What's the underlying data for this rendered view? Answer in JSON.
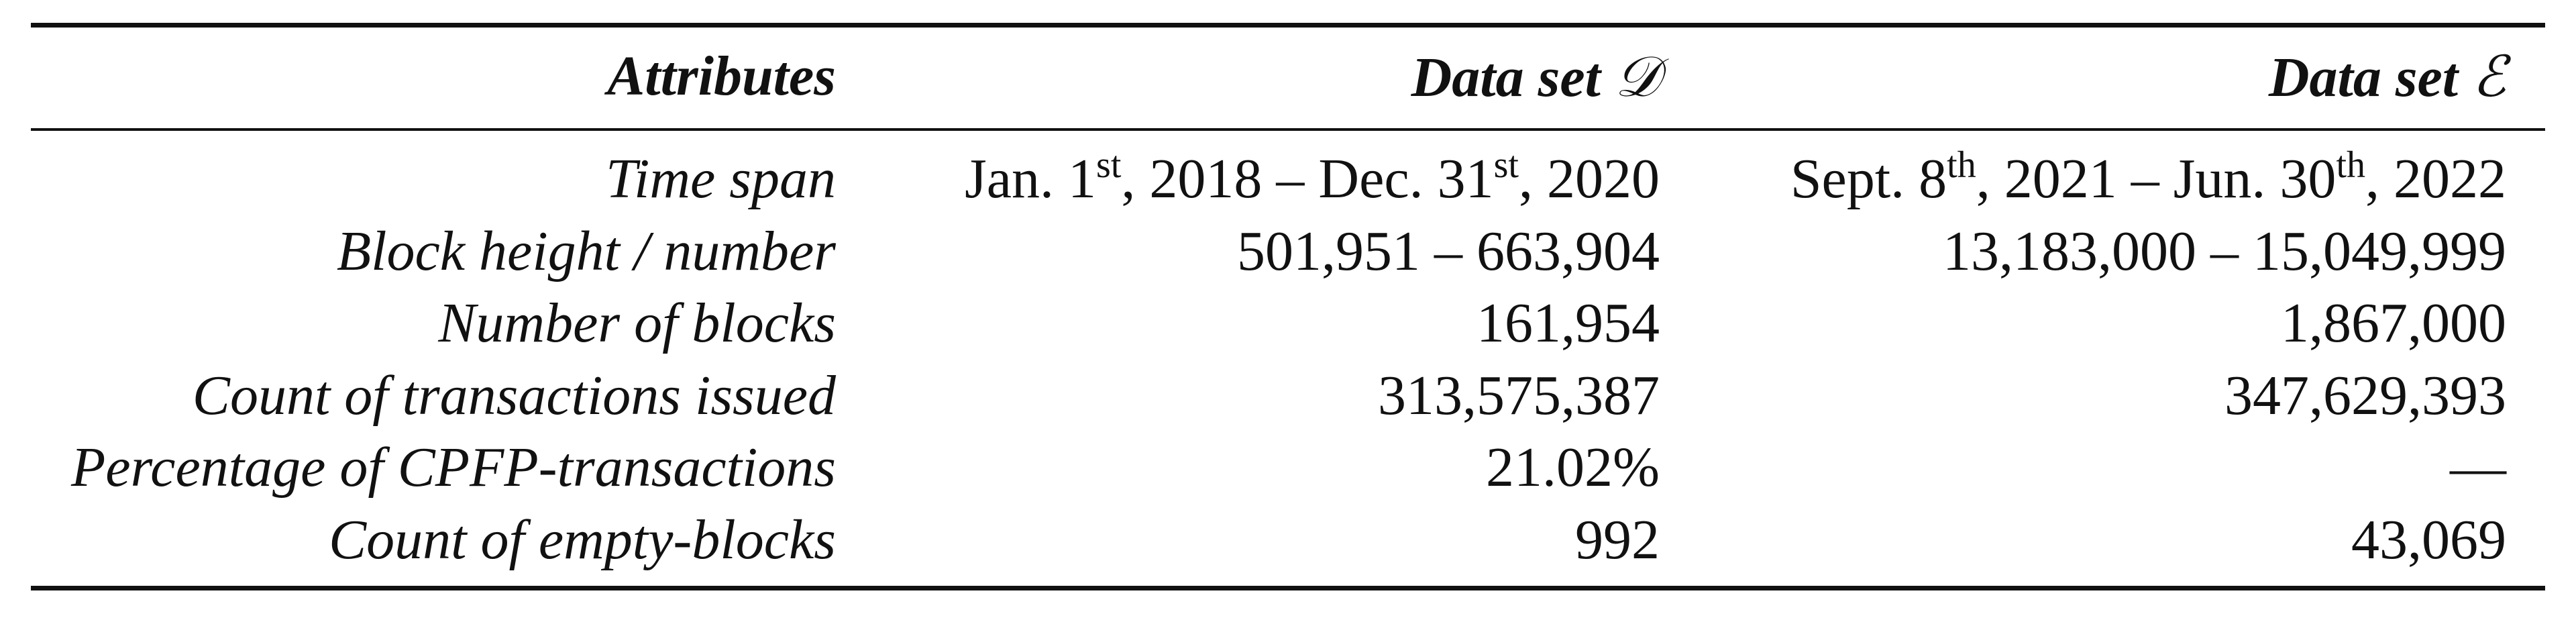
{
  "table": {
    "headers": {
      "attributes": "Attributes",
      "data_set_d_prefix": "Data set ",
      "data_set_d_symbol": "𝒟",
      "data_set_e_prefix": "Data set ",
      "data_set_e_symbol": "ℰ"
    },
    "rows": [
      {
        "attribute": "Time span",
        "d": {
          "start_month": "Jan. 1",
          "start_sup": "st",
          "start_rest": ", 2018 – Dec. 31",
          "end_sup": "st",
          "end_rest": ", 2020"
        },
        "e": {
          "start_month": "Sept. 8",
          "start_sup": "th",
          "start_rest": ", 2021 – Jun. 30",
          "end_sup": "th",
          "end_rest": ", 2022"
        }
      },
      {
        "attribute": "Block height / number",
        "d": "501,951 – 663,904",
        "e": "13,183,000 – 15,049,999"
      },
      {
        "attribute": "Number of blocks",
        "d": "161,954",
        "e": "1,867,000"
      },
      {
        "attribute": "Count of transactions issued",
        "d": "313,575,387",
        "e": "347,629,393"
      },
      {
        "attribute": "Percentage of CPFP-transactions",
        "d": "21.02%",
        "e": "—"
      },
      {
        "attribute": "Count of empty-blocks",
        "d": "992",
        "e": "43,069"
      }
    ]
  }
}
